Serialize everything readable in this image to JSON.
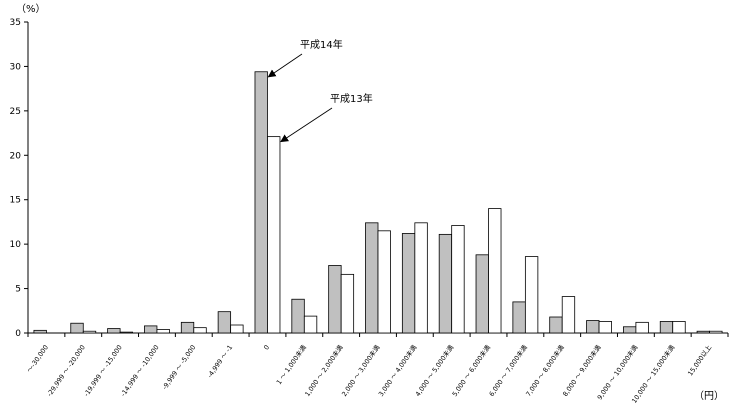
{
  "chart_data": {
    "type": "bar",
    "ylabel": "（%）",
    "xlabel": "（円）",
    "ylim": [
      0,
      35
    ],
    "yticks": [
      0,
      5,
      10,
      15,
      20,
      25,
      30,
      35
    ],
    "grid": false,
    "legend": "none",
    "categories": [
      "～-30,000",
      "-29,999 ～ -20,000",
      "-19,999 ～ -15,000",
      "-14,999 ～ -10,000",
      "-9,999 ～ -5,000",
      "-4,999 ～ -1",
      "0",
      "1 ～ 1,000未満",
      "1,000 ～ 2,000未満",
      "2,000 ～ 3,000未満",
      "3,000 ～ 4,000未満",
      "4,000 ～ 5,000未満",
      "5,000 ～ 6,000未満",
      "6,000 ～ 7,000未満",
      "7,000 ～ 8,000未満",
      "8,000 ～ 9,000未満",
      "9,000 ～ 10,000未満",
      "10,000 ～ 15,000未満",
      "15,000以上"
    ],
    "series": [
      {
        "name": "平成14年",
        "color": "#c0c0c0",
        "values": [
          0.3,
          1.1,
          0.5,
          0.8,
          1.2,
          2.4,
          29.4,
          3.8,
          7.6,
          12.4,
          11.2,
          11.1,
          8.8,
          3.5,
          1.8,
          1.4,
          0.7,
          1.3,
          0.2
        ]
      },
      {
        "name": "平成13年",
        "color": "#ffffff",
        "values": [
          0.0,
          0.2,
          0.1,
          0.4,
          0.6,
          0.9,
          22.1,
          1.9,
          6.6,
          11.5,
          12.4,
          12.1,
          14.0,
          8.6,
          4.1,
          1.3,
          1.2,
          1.3,
          0.2
        ]
      }
    ],
    "annotations": [
      {
        "text": "平成14年",
        "series": 0,
        "category": 6
      },
      {
        "text": "平成13年",
        "series": 1,
        "category": 6
      }
    ]
  }
}
